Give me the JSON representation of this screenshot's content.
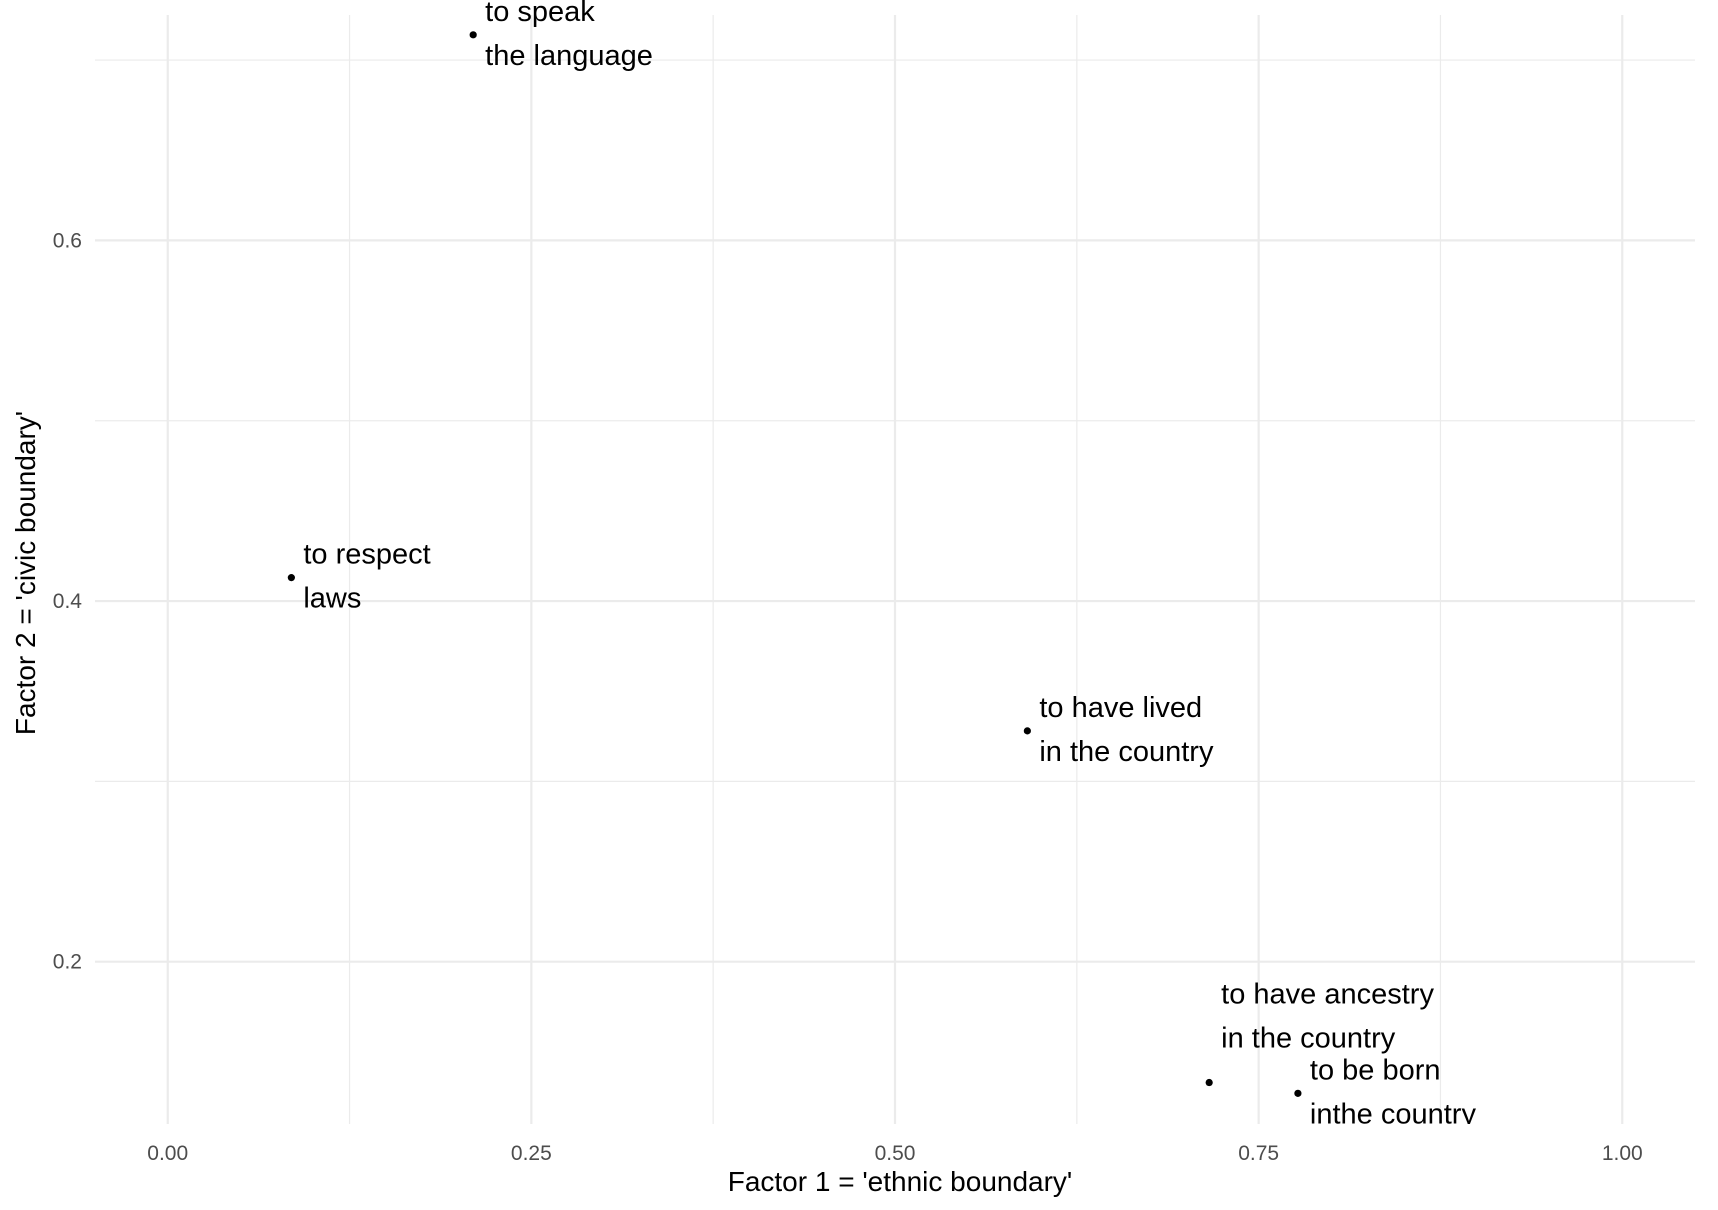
{
  "chart_data": {
    "type": "scatter",
    "xlabel": "Factor 1 = 'ethnic boundary'",
    "ylabel": "Factor 2 = 'civic boundary'",
    "xlim": [
      -0.05,
      1.05
    ],
    "ylim": [
      0.11,
      0.725
    ],
    "x_ticks": [
      "0.00",
      "0.25",
      "0.50",
      "0.75",
      "1.00"
    ],
    "x_tick_values": [
      0,
      0.25,
      0.5,
      0.75,
      1.0
    ],
    "y_ticks": [
      "0.2",
      "0.4",
      "0.6"
    ],
    "y_tick_values": [
      0.2,
      0.4,
      0.6
    ],
    "grid": true,
    "points": [
      {
        "x": 0.21,
        "y": 0.714,
        "label_lines": [
          "to speak",
          "the language"
        ]
      },
      {
        "x": 0.085,
        "y": 0.413,
        "label_lines": [
          "to respect",
          "laws"
        ]
      },
      {
        "x": 0.591,
        "y": 0.328,
        "label_lines": [
          "to have lived",
          "in the country"
        ]
      },
      {
        "x": 0.716,
        "y": 0.133,
        "label_lines": [
          "to have ancestry",
          "in the country"
        ]
      },
      {
        "x": 0.777,
        "y": 0.127,
        "label_lines": [
          "to be born",
          "inthe country"
        ]
      }
    ]
  }
}
